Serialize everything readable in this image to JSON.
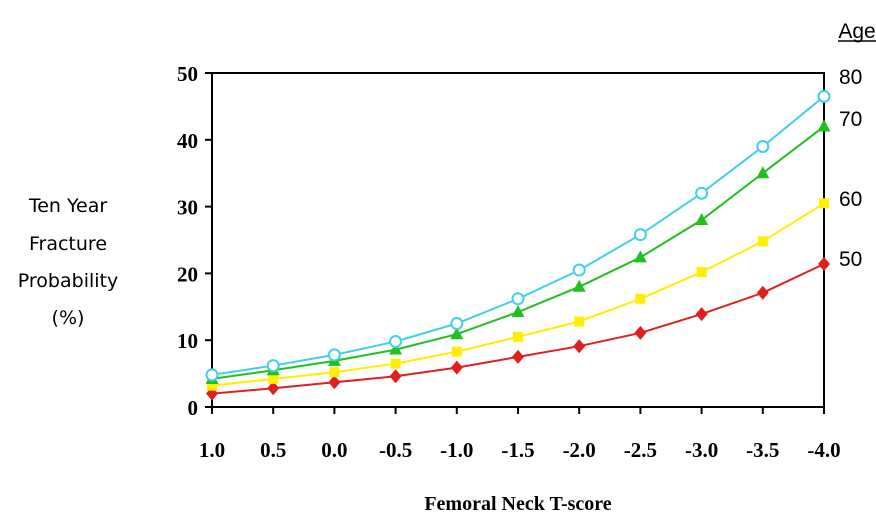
{
  "chart_data": {
    "type": "line",
    "xlabel": "Femoral Neck T-score",
    "ylabel_lines": [
      "Ten Year",
      "Fracture",
      "Probability",
      "(%)"
    ],
    "x": [
      1.0,
      0.5,
      0.0,
      -0.5,
      -1.0,
      -1.5,
      -2.0,
      -2.5,
      -3.0,
      -3.5,
      -4.0
    ],
    "x_tick_labels": [
      "1.0",
      "0.5",
      "0.0",
      "-0.5",
      "-1.0",
      "-1.5",
      "-2.0",
      "-2.5",
      "-3.0",
      "-3.5",
      "-4.0"
    ],
    "xlim": [
      1.0,
      -4.0
    ],
    "ylim": [
      0,
      50
    ],
    "y_ticks": [
      0,
      10,
      20,
      30,
      40,
      50
    ],
    "grid": false,
    "legend": {
      "title": "Age",
      "placement": "right"
    },
    "series": [
      {
        "name": "80",
        "color": "#40d0e8",
        "marker": "open-circle",
        "values": [
          4.8,
          6.2,
          7.8,
          9.8,
          12.5,
          16.2,
          20.5,
          25.8,
          32.0,
          39.0,
          46.5
        ]
      },
      {
        "name": "70",
        "color": "#20c020",
        "marker": "triangle",
        "values": [
          4.2,
          5.5,
          6.9,
          8.6,
          10.9,
          14.2,
          18.0,
          22.4,
          28.0,
          35.0,
          42.0
        ]
      },
      {
        "name": "60",
        "color": "#ffee00",
        "marker": "square",
        "values": [
          3.2,
          4.2,
          5.2,
          6.5,
          8.3,
          10.5,
          12.8,
          16.2,
          20.2,
          24.8,
          30.5
        ]
      },
      {
        "name": "50",
        "color": "#e02020",
        "marker": "diamond",
        "values": [
          2.0,
          2.8,
          3.7,
          4.6,
          5.9,
          7.5,
          9.1,
          11.1,
          13.9,
          17.1,
          21.4
        ]
      }
    ]
  }
}
